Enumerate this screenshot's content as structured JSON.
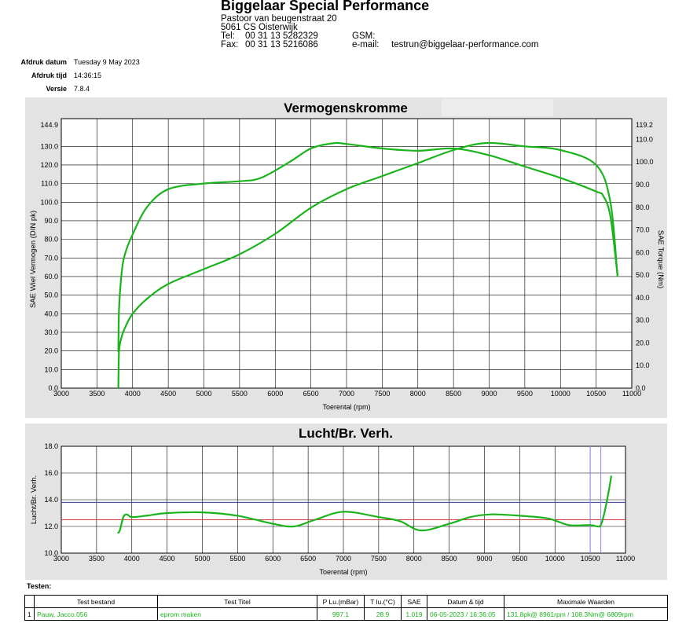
{
  "header": {
    "company": "Biggelaar Special Performance",
    "street": "Pastoor van beugenstraat  20",
    "city": "5061 CS Oisterwijk",
    "tel_label": "Tel:",
    "tel": "00 31 13 5282329",
    "fax_label": "Fax:",
    "fax": "00 31 13 5216086",
    "gsm_label": "GSM:",
    "email_label": "e-mail:",
    "email": "testrun@biggelaar-performance.com"
  },
  "meta": {
    "date_label": "Afdruk datum",
    "date": "Tuesday 9 May 2023",
    "time_label": "Afdruk tijd",
    "time": "14:36:15",
    "version_label": "Versie",
    "version": "7.8.4"
  },
  "colors": {
    "curve": "#1bb31b",
    "panel": "#e3e3e3",
    "grid": "#000000",
    "ref_blue": "#3a3aa0",
    "ref_red": "#d04040",
    "marker": "#8888ee"
  },
  "chart_data": [
    {
      "type": "line",
      "title": "Vermogenskromme",
      "xlabel": "Toerental (rpm)",
      "ylabel": "SAE Wiel Vermogen (DIN pk)",
      "y2label": "SAE Torque (Nm)",
      "xlim": [
        3000,
        11000
      ],
      "ylim": [
        0,
        144.9
      ],
      "y2lim": [
        0,
        119.2
      ],
      "x_ticks": [
        "3000",
        "3500",
        "4000",
        "4500",
        "5000",
        "5500",
        "6000",
        "6500",
        "7000",
        "7500",
        "8000",
        "8500",
        "9000",
        "9500",
        "10000",
        "10500",
        "11000"
      ],
      "y_ticks": [
        "0.0",
        "10.0",
        "20.0",
        "30.0",
        "40.0",
        "50.0",
        "60.0",
        "70.0",
        "80.0",
        "90.0",
        "100.0",
        "110.0",
        "120.0",
        "130.0"
      ],
      "y_top_label": "144.9",
      "y2_ticks": [
        "0.0",
        "10.0",
        "20.0",
        "30.0",
        "40.0",
        "50.0",
        "60.0",
        "70.0",
        "80.0",
        "90.0",
        "100.0",
        "110.0"
      ],
      "y2_top_label": "119.2",
      "grid": true,
      "series": [
        {
          "axis": "left",
          "x": [
            3800,
            3810,
            3850,
            3900,
            4000,
            4200,
            4500,
            5000,
            5500,
            6000,
            6500,
            7000,
            7500,
            8000,
            8500,
            8961,
            9500,
            10000,
            10500,
            10700,
            10800
          ],
          "y": [
            0,
            20,
            28,
            33,
            40,
            48,
            56,
            64,
            72,
            83,
            97,
            107,
            114,
            121,
            128,
            131.8,
            130,
            128,
            120,
            100,
            60
          ]
        },
        {
          "axis": "right",
          "x": [
            3800,
            3810,
            3850,
            3900,
            4000,
            4200,
            4500,
            5000,
            5500,
            5800,
            6200,
            6500,
            6809,
            7000,
            7500,
            8000,
            8500,
            9000,
            9500,
            10000,
            10500,
            10600,
            10700,
            10800
          ],
          "y": [
            16,
            35,
            52,
            60,
            68,
            80,
            88,
            90.5,
            91.5,
            93,
            100,
            106,
            108.3,
            108,
            106,
            105,
            106,
            103,
            98,
            93,
            87,
            85,
            76,
            50
          ]
        }
      ]
    },
    {
      "type": "line",
      "title": "Lucht/Br. Verh.",
      "xlabel": "Toerental (rpm)",
      "ylabel": "Lucht/Br. Verh.",
      "xlim": [
        3000,
        11000
      ],
      "ylim": [
        10,
        18
      ],
      "x_ticks": [
        "3000",
        "3500",
        "4000",
        "4500",
        "5000",
        "5500",
        "6000",
        "6500",
        "7000",
        "7500",
        "8000",
        "8500",
        "9000",
        "9500",
        "10000",
        "10500",
        "11000"
      ],
      "y_ticks": [
        "10.0",
        "12.0",
        "14.0",
        "16.0",
        "18.0"
      ],
      "grid": true,
      "ref_lines": [
        13.8,
        12.5
      ],
      "markers": [
        10500,
        10650
      ],
      "series": [
        {
          "axis": "left",
          "x": [
            3800,
            3830,
            3880,
            3930,
            4000,
            4200,
            4500,
            5000,
            5500,
            6000,
            6300,
            6600,
            7000,
            7500,
            7800,
            8100,
            8500,
            8800,
            9100,
            9500,
            9900,
            10200,
            10500,
            10600,
            10650,
            10700,
            10750,
            10800
          ],
          "y": [
            11.5,
            11.7,
            12.7,
            12.9,
            12.7,
            12.8,
            13.0,
            13.05,
            12.8,
            12.2,
            12.0,
            12.5,
            13.1,
            12.7,
            12.4,
            11.7,
            12.2,
            12.7,
            12.9,
            12.8,
            12.6,
            12.1,
            12.1,
            12.0,
            12.1,
            13.0,
            14.3,
            15.8
          ]
        }
      ]
    }
  ],
  "tests": {
    "section_label": "Testen:",
    "columns": [
      "",
      "Test bestand",
      "Test Titel",
      "P Lu.(mBar)",
      "T lu.(°C)",
      "SAE",
      "Datum & tijd",
      "Maximale Waarden"
    ],
    "rows": [
      [
        "1",
        "Pauw, Jacco.056",
        "eprom maken",
        "997.1",
        "28.9",
        "1.019",
        "06-05-2023 / 16:36:05",
        "131.8pk@ 8961rpm / 108.3Nm@ 6809rpm"
      ]
    ]
  }
}
